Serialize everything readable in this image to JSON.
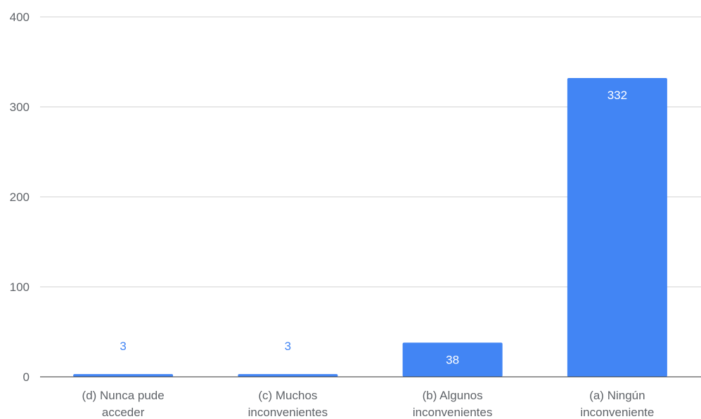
{
  "chart_data": {
    "type": "bar",
    "categories": [
      [
        "(d) Nunca pude",
        "acceder"
      ],
      [
        "(c) Muchos",
        "inconvenientes"
      ],
      [
        "(b) Algunos",
        "inconvenientes"
      ],
      [
        "(a) Ningún",
        "inconveniente"
      ]
    ],
    "values": [
      3,
      3,
      38,
      332
    ],
    "ylim": [
      0,
      400
    ],
    "yticks": [
      0,
      100,
      200,
      300,
      400
    ],
    "grid": true,
    "legend": "none",
    "colors": {
      "bar": "#4285f4",
      "label_inside": "#ffffff",
      "label_outside": "#4285f4"
    }
  }
}
